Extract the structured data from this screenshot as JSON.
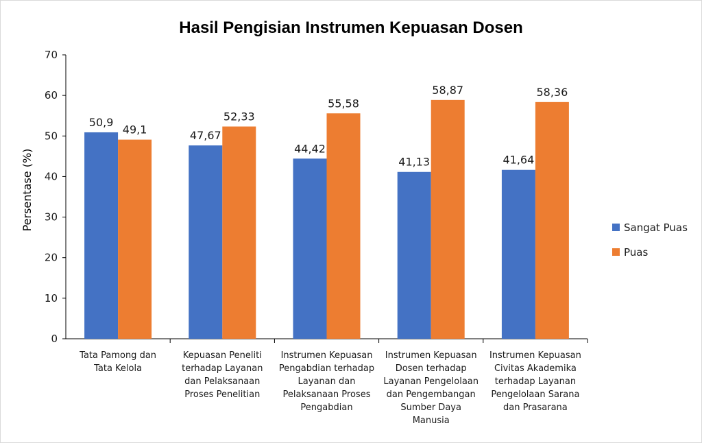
{
  "chart_data": {
    "type": "bar",
    "title": "Hasil Pengisian Instrumen Kepuasan Dosen",
    "xlabel": "",
    "ylabel": "Persentase (%)",
    "ylim": [
      0,
      70
    ],
    "yticks": [
      0,
      10,
      20,
      30,
      40,
      50,
      60,
      70
    ],
    "grid": false,
    "legend_position": "right",
    "categories": [
      [
        "Tata Pamong dan",
        "Tata Kelola"
      ],
      [
        "Kepuasan Peneliti",
        "terhadap Layanan",
        "dan Pelaksanaan",
        "Proses Penelitian"
      ],
      [
        "Instrumen Kepuasan",
        "Pengabdian terhadap",
        "Layanan dan",
        "Pelaksanaan Proses",
        "Pengabdian"
      ],
      [
        "Instrumen Kepuasan",
        "Dosen terhadap",
        "Layanan Pengelolaan",
        "dan Pengembangan",
        "Sumber Daya",
        "Manusia"
      ],
      [
        "Instrumen Kepuasan",
        "Civitas Akademika",
        "terhadap Layanan",
        "Pengelolaan Sarana",
        "dan Prasarana"
      ]
    ],
    "series": [
      {
        "name": "Sangat Puas",
        "color": "#4472c4",
        "values": [
          50.9,
          47.67,
          44.42,
          41.13,
          41.64
        ],
        "labels": [
          "50,9",
          "47,67",
          "44,42",
          "41,13",
          "41,64"
        ]
      },
      {
        "name": "Puas",
        "color": "#ed7d31",
        "values": [
          49.1,
          52.33,
          55.58,
          58.87,
          58.36
        ],
        "labels": [
          "49,1",
          "52,33",
          "55,58",
          "58,87",
          "58,36"
        ]
      }
    ]
  }
}
